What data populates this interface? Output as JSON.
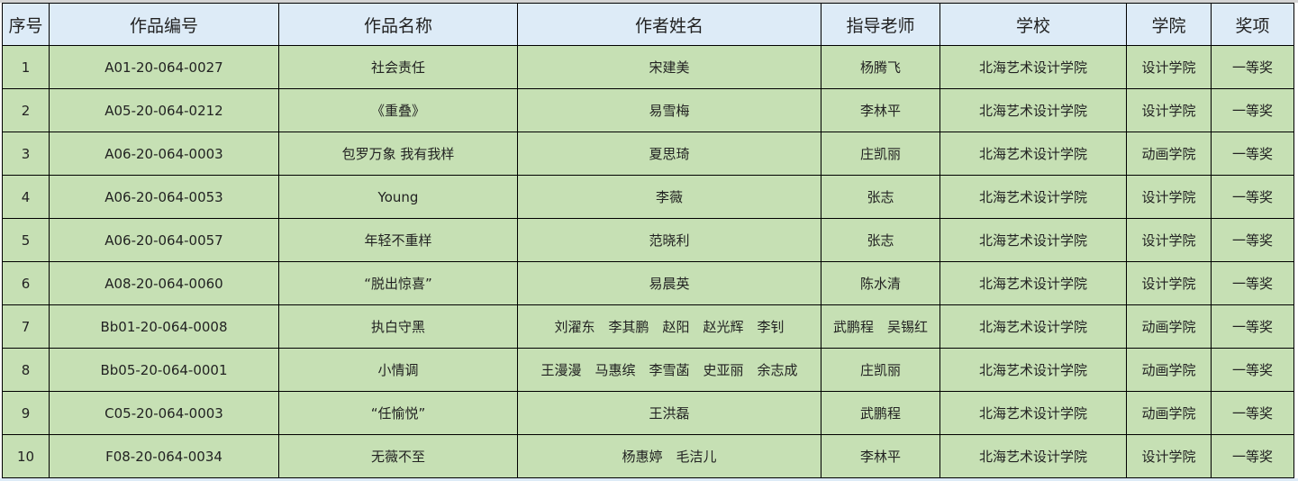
{
  "headers": [
    "序号",
    "作品编号",
    "作品名称",
    "作者姓名",
    "指导老师",
    "学校",
    "学院",
    "奖项"
  ],
  "rows": [
    [
      "1",
      "A01-20-064-0027",
      "社会责任",
      "宋建美",
      "杨腾飞",
      "北海艺术设计学院",
      "设计学院",
      "一等奖"
    ],
    [
      "2",
      "A05-20-064-0212",
      "《重叠》",
      "易雪梅",
      "李林平",
      "北海艺术设计学院",
      "设计学院",
      "一等奖"
    ],
    [
      "3",
      "A06-20-064-0003",
      "包罗万象 我有我样",
      "夏思琦",
      "庄凯丽",
      "北海艺术设计学院",
      "动画学院",
      "一等奖"
    ],
    [
      "4",
      "A06-20-064-0053",
      "Young",
      "李薇",
      "张志",
      "北海艺术设计学院",
      "设计学院",
      "一等奖"
    ],
    [
      "5",
      "A06-20-064-0057",
      "年轻不重样",
      "范晓利",
      "张志",
      "北海艺术设计学院",
      "设计学院",
      "一等奖"
    ],
    [
      "6",
      "A08-20-064-0060",
      "“脱出惊喜”",
      "易晨英",
      "陈水清",
      "北海艺术设计学院",
      "设计学院",
      "一等奖"
    ],
    [
      "7",
      "Bb01-20-064-0008",
      "执白守黑",
      "刘濯东　李其鹏　赵阳　赵光辉　李钊",
      "武鹏程　吴锡红",
      "北海艺术设计学院",
      "动画学院",
      "一等奖"
    ],
    [
      "8",
      "Bb05-20-064-0001",
      "小情调",
      "王漫漫　马惠缤　李雪菡　史亚丽　余志成",
      "庄凯丽",
      "北海艺术设计学院",
      "动画学院",
      "一等奖"
    ],
    [
      "9",
      "C05-20-064-0003",
      "“任愉悦”",
      "王洪磊",
      "武鹏程",
      "北海艺术设计学院",
      "动画学院",
      "一等奖"
    ],
    [
      "10",
      "F08-20-064-0034",
      "无薇不至",
      "杨惠婷　毛洁儿",
      "李林平",
      "北海艺术设计学院",
      "设计学院",
      "一等奖"
    ]
  ],
  "colors": {
    "header_bg": "#ddebf7",
    "row_bg": "#c6e0b4",
    "border": "#000000"
  }
}
